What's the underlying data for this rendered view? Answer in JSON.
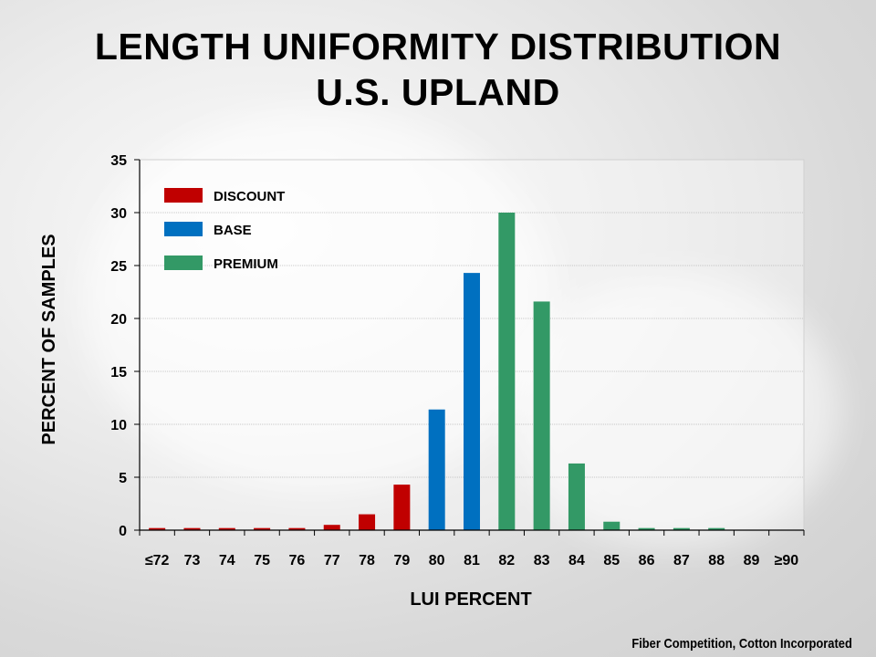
{
  "title_line1": "LENGTH UNIFORMITY DISTRIBUTION",
  "title_line2": "U.S. UPLAND",
  "credit": "Fiber Competition, Cotton Incorporated",
  "colors": {
    "discount": "#C00000",
    "base": "#0070C0",
    "premium": "#339966"
  },
  "chart_data": {
    "type": "bar",
    "title": "LENGTH UNIFORMITY DISTRIBUTION U.S. UPLAND",
    "xlabel": "LUI PERCENT",
    "ylabel": "PERCENT OF SAMPLES",
    "ylim": [
      0,
      35
    ],
    "yticks": [
      0,
      5,
      10,
      15,
      20,
      25,
      30,
      35
    ],
    "grid": true,
    "legend_position": "top-left",
    "categories": [
      "≤72",
      "73",
      "74",
      "75",
      "76",
      "77",
      "78",
      "79",
      "80",
      "81",
      "82",
      "83",
      "84",
      "85",
      "86",
      "87",
      "88",
      "89",
      "≥90"
    ],
    "values": [
      0.2,
      0.2,
      0.2,
      0.2,
      0.2,
      0.5,
      1.5,
      4.3,
      11.4,
      24.3,
      30.0,
      21.6,
      6.3,
      0.8,
      0.2,
      0.2,
      0.2,
      0.0,
      0.0
    ],
    "groups": [
      "discount",
      "discount",
      "discount",
      "discount",
      "discount",
      "discount",
      "discount",
      "discount",
      "base",
      "base",
      "premium",
      "premium",
      "premium",
      "premium",
      "premium",
      "premium",
      "premium",
      "premium",
      "premium"
    ],
    "legend": [
      {
        "key": "discount",
        "label": "DISCOUNT"
      },
      {
        "key": "base",
        "label": "BASE"
      },
      {
        "key": "premium",
        "label": "PREMIUM"
      }
    ]
  }
}
